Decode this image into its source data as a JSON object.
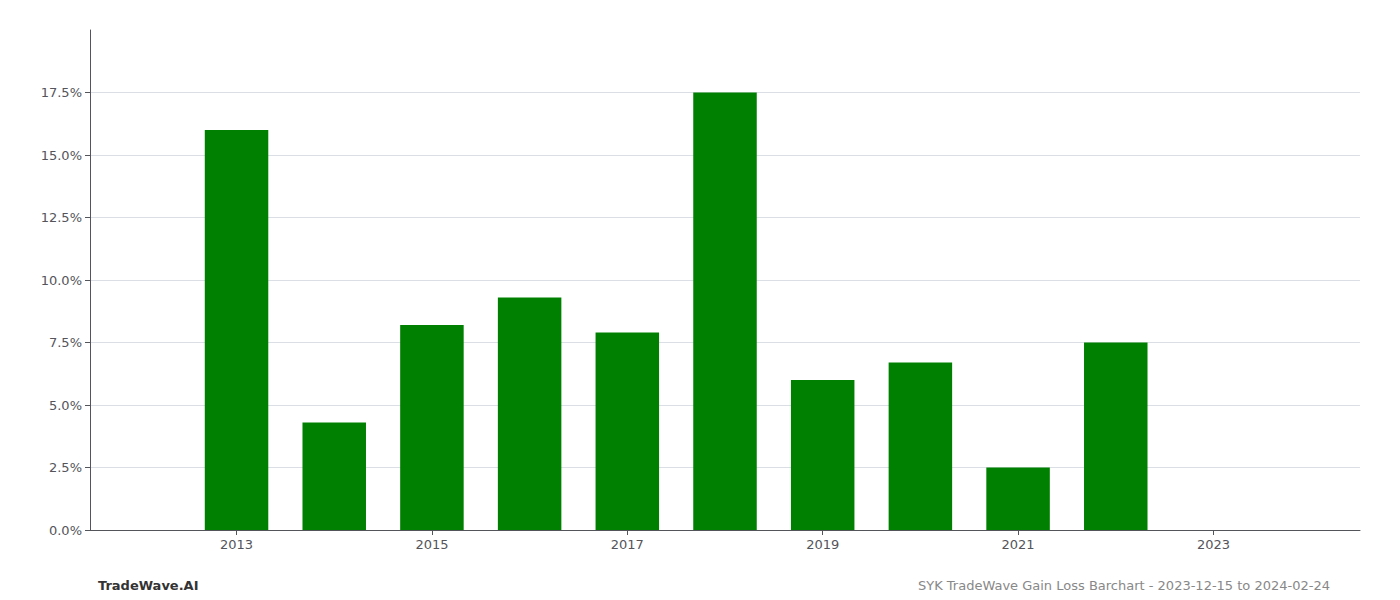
{
  "chart_data": {
    "type": "bar",
    "x": [
      2013,
      2014,
      2015,
      2016,
      2017,
      2018,
      2019,
      2020,
      2021,
      2022
    ],
    "values": [
      0.16,
      0.043,
      0.082,
      0.093,
      0.079,
      0.175,
      0.06,
      0.067,
      0.025,
      0.075
    ],
    "color": "#008000",
    "xlim": [
      2011.5,
      2024.5
    ],
    "xticks": [
      2013,
      2015,
      2017,
      2019,
      2021,
      2023
    ],
    "ylim": [
      0.0,
      0.2
    ],
    "yticks": [
      {
        "value": 0.0,
        "label": "0.0%"
      },
      {
        "value": 0.025,
        "label": "2.5%"
      },
      {
        "value": 0.05,
        "label": "5.0%"
      },
      {
        "value": 0.075,
        "label": "7.5%"
      },
      {
        "value": 0.1,
        "label": "10.0%"
      },
      {
        "value": 0.125,
        "label": "12.5%"
      },
      {
        "value": 0.15,
        "label": "15.0%"
      },
      {
        "value": 0.175,
        "label": "17.5%"
      }
    ],
    "grid": true,
    "annotations": [
      "TradeWave.AI",
      "SYK TradeWave Gain Loss Barchart - 2023-12-15 to 2024-02-24"
    ]
  }
}
